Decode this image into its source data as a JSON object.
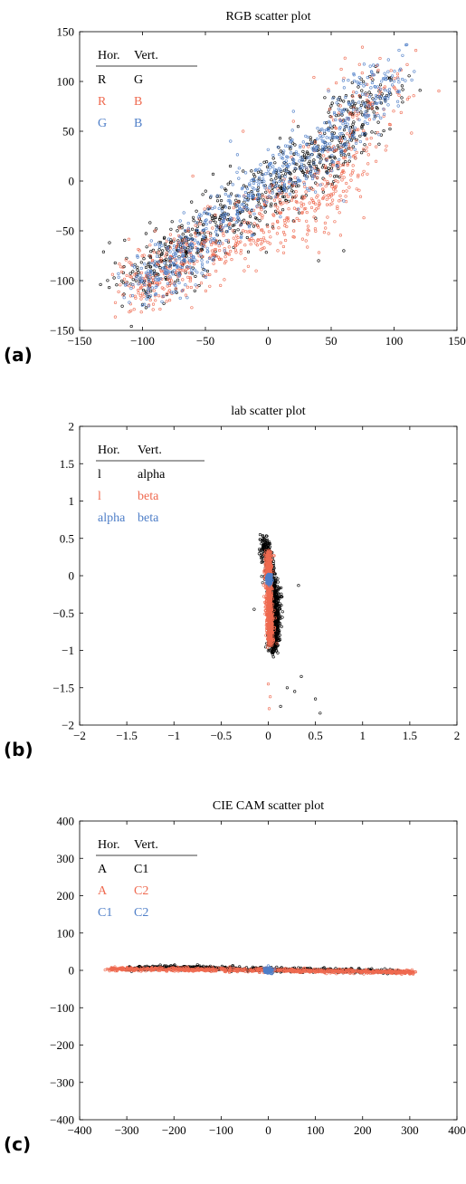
{
  "chart_data": [
    {
      "type": "scatter",
      "panel_label": "(a)",
      "title": "RGB scatter plot",
      "xlabel": "",
      "ylabel": "",
      "xlim": [
        -150,
        150
      ],
      "ylim": [
        -150,
        150
      ],
      "xticks": [
        -150,
        -100,
        -50,
        0,
        50,
        100,
        150
      ],
      "yticks": [
        -150,
        -100,
        -50,
        0,
        50,
        100,
        150
      ],
      "xtick_labels": [
        "−150",
        "−100",
        "−50",
        "0",
        "50",
        "100",
        "150"
      ],
      "ytick_labels": [
        "−150",
        "−100",
        "−50",
        "0",
        "50",
        "100",
        "150"
      ],
      "legend": {
        "position": "top-left",
        "headers": [
          "Hor.",
          "Vert."
        ],
        "rows": [
          [
            "R",
            "G"
          ],
          [
            "R",
            "B"
          ],
          [
            "G",
            "B"
          ]
        ]
      },
      "grid": false,
      "series": [
        {
          "color": "#000000",
          "count": 700,
          "centers": [
            [
              -105,
              -105
            ],
            [
              -60,
              -60
            ],
            [
              0,
              -10
            ],
            [
              50,
              30
            ],
            [
              90,
              95
            ]
          ],
          "spread": 14,
          "outliers": [
            [
              -55,
              -105
            ],
            [
              10,
              30
            ],
            [
              20,
              -40
            ],
            [
              60,
              -70
            ],
            [
              40,
              -80
            ],
            [
              -20,
              10
            ]
          ]
        },
        {
          "color": "#ef6a50",
          "count": 700,
          "centers": [
            [
              -100,
              -110
            ],
            [
              -70,
              -80
            ],
            [
              0,
              -40
            ],
            [
              50,
              -10
            ],
            [
              95,
              110
            ]
          ],
          "spread": 16,
          "outliers": [
            [
              -20,
              50
            ],
            [
              -60,
              5
            ],
            [
              20,
              60
            ],
            [
              70,
              40
            ],
            [
              30,
              -60
            ],
            [
              -90,
              -50
            ]
          ]
        },
        {
          "color": "#4f7fc8",
          "count": 700,
          "centers": [
            [
              -100,
              -108
            ],
            [
              -60,
              -70
            ],
            [
              0,
              0
            ],
            [
              50,
              40
            ],
            [
              100,
              115
            ]
          ],
          "spread": 12,
          "outliers": [
            [
              -30,
              40
            ],
            [
              20,
              70
            ],
            [
              60,
              -20
            ],
            [
              -70,
              -40
            ]
          ]
        }
      ]
    },
    {
      "type": "scatter",
      "panel_label": "(b)",
      "title": "lab scatter plot",
      "xlabel": "",
      "ylabel": "",
      "xlim": [
        -2,
        2
      ],
      "ylim": [
        -2,
        2
      ],
      "xticks": [
        -2,
        -1.5,
        -1,
        -0.5,
        0,
        0.5,
        1,
        1.5,
        2
      ],
      "yticks": [
        -2,
        -1.5,
        -1,
        -0.5,
        0,
        0.5,
        1,
        1.5,
        2
      ],
      "xtick_labels": [
        "−2",
        "−1.5",
        "−1",
        "−0.5",
        "0",
        "0.5",
        "1",
        "1.5",
        "2"
      ],
      "ytick_labels": [
        "−2",
        "−1.5",
        "−1",
        "−0.5",
        "0",
        "0.5",
        "1",
        "1.5",
        "2"
      ],
      "legend": {
        "position": "top-left",
        "headers": [
          "Hor.",
          "Vert."
        ],
        "rows": [
          [
            "l",
            "alpha"
          ],
          [
            "l",
            "beta"
          ],
          [
            "alpha",
            "beta"
          ]
        ]
      },
      "grid": false,
      "series": [
        {
          "color": "#000000",
          "count": 900,
          "centers": [
            [
              -0.05,
              0.5
            ],
            [
              0.06,
              -0.2
            ],
            [
              0.07,
              -0.6
            ],
            [
              0.05,
              -1.0
            ]
          ],
          "spread": 0.05,
          "outliers": [
            [
              -0.15,
              -0.45
            ],
            [
              0.32,
              -0.13
            ],
            [
              0.2,
              -1.5
            ],
            [
              0.28,
              -1.55
            ],
            [
              0.5,
              -1.65
            ],
            [
              0.55,
              -1.84
            ],
            [
              0.35,
              -1.35
            ],
            [
              0.13,
              -1.75
            ]
          ]
        },
        {
          "color": "#ef6a50",
          "count": 800,
          "centers": [
            [
              0.0,
              0.3
            ],
            [
              0.01,
              -0.3
            ],
            [
              0.02,
              -0.9
            ]
          ],
          "spread": 0.03,
          "outliers": [
            [
              0.0,
              -1.45
            ],
            [
              0.01,
              -1.78
            ],
            [
              0.02,
              -1.62
            ]
          ]
        },
        {
          "color": "#4f7fc8",
          "count": 250,
          "centers": [
            [
              0.01,
              0.0
            ],
            [
              0.01,
              -0.1
            ]
          ],
          "spread": 0.02,
          "outliers": []
        }
      ]
    },
    {
      "type": "scatter",
      "panel_label": "(c)",
      "title": "CIE CAM scatter plot",
      "xlabel": "",
      "ylabel": "",
      "xlim": [
        -400,
        400
      ],
      "ylim": [
        -400,
        400
      ],
      "xticks": [
        -400,
        -300,
        -200,
        -100,
        0,
        100,
        200,
        300,
        400
      ],
      "yticks": [
        -400,
        -300,
        -200,
        -100,
        0,
        100,
        200,
        300,
        400
      ],
      "xtick_labels": [
        "−400",
        "−300",
        "−200",
        "−100",
        "0",
        "100",
        "200",
        "300",
        "400"
      ],
      "ytick_labels": [
        "−400",
        "−300",
        "−200",
        "−100",
        "0",
        "100",
        "200",
        "300",
        "400"
      ],
      "legend": {
        "position": "top-left",
        "headers": [
          "Hor.",
          "Vert."
        ],
        "rows": [
          [
            "A",
            "C1"
          ],
          [
            "A",
            "C2"
          ],
          [
            "C1",
            "C2"
          ]
        ]
      },
      "grid": false,
      "series": [
        {
          "color": "#000000",
          "count": 700,
          "centers": [
            [
              -300,
              5
            ],
            [
              -200,
              8
            ],
            [
              -120,
              5
            ],
            [
              0,
              2
            ],
            [
              150,
              0
            ],
            [
              280,
              -3
            ]
          ],
          "spread": 4,
          "outliers": [
            [
              -150,
              15
            ],
            [
              -220,
              12
            ],
            [
              -330,
              6
            ]
          ]
        },
        {
          "color": "#ef6a50",
          "count": 1000,
          "centers": [
            [
              -340,
              3
            ],
            [
              -250,
              4
            ],
            [
              -150,
              2
            ],
            [
              -50,
              1
            ],
            [
              50,
              0
            ],
            [
              150,
              -2
            ],
            [
              250,
              -4
            ],
            [
              310,
              -5
            ]
          ],
          "spread": 3.5,
          "outliers": []
        },
        {
          "color": "#4f7fc8",
          "count": 120,
          "centers": [
            [
              0,
              0
            ]
          ],
          "spread": 5,
          "outliers": [
            [
              0,
              12
            ],
            [
              5,
              -8
            ]
          ]
        }
      ]
    }
  ]
}
